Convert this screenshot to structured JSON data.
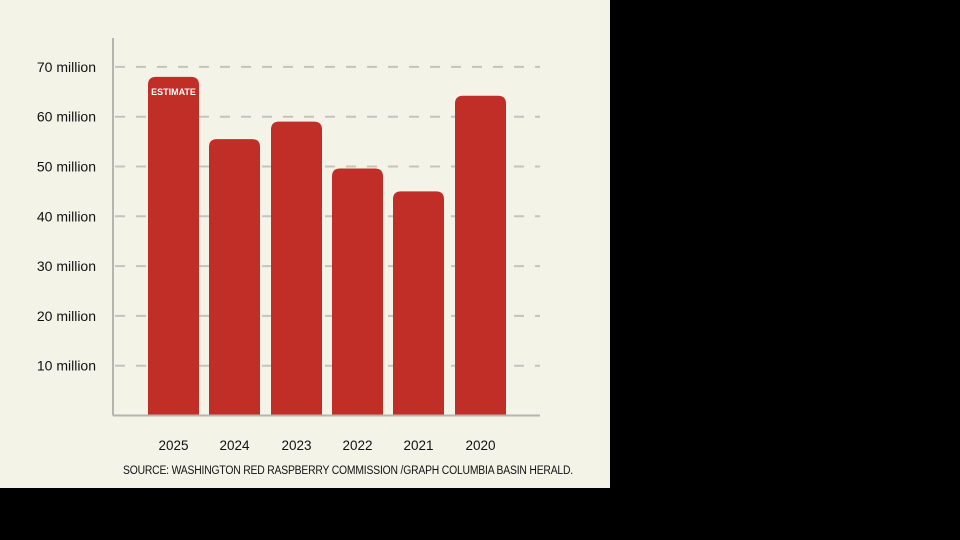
{
  "chart_data": {
    "type": "bar",
    "categories": [
      "2025",
      "2024",
      "2023",
      "2022",
      "2021",
      "2020"
    ],
    "values": [
      68,
      55.5,
      59,
      49.6,
      45,
      64.2
    ],
    "value_unit": "million",
    "annotations": [
      {
        "category": "2025",
        "text": "ESTIMATE"
      }
    ],
    "yticks": [
      10,
      20,
      30,
      40,
      50,
      60,
      70
    ],
    "ytick_labels": [
      "10 million",
      "20 million",
      "30 million",
      "40 million",
      "50 million",
      "60 million",
      "70 million"
    ],
    "ylim": [
      0,
      75
    ],
    "grid": true,
    "title": "",
    "xlabel": "",
    "ylabel": "",
    "source": "SOURCE: WASHINGTON RED RASPBERRY COMMISSION /GRAPH COLUMBIA BASIN HERALD.",
    "colors": {
      "bar": "#c12d27",
      "grid": "#c4c4bd",
      "axis": "#b5b5b0",
      "background": "#f4f3e8"
    }
  }
}
